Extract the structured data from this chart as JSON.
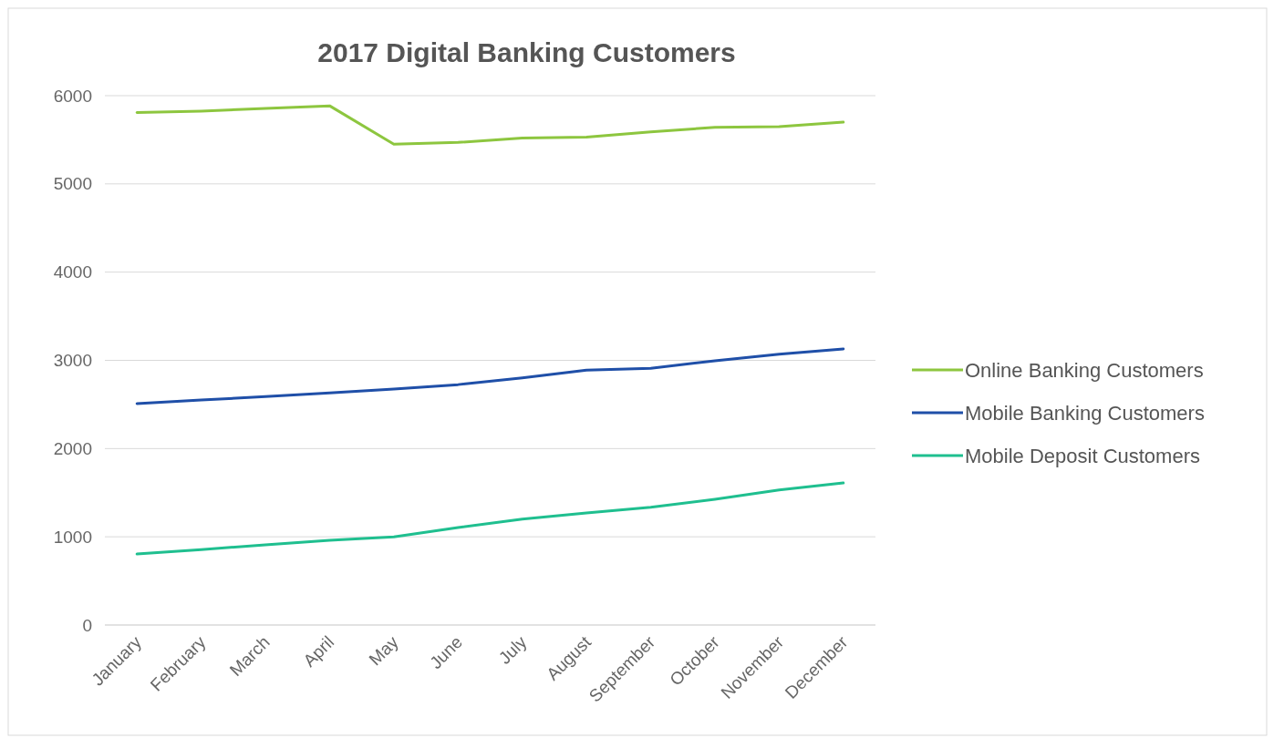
{
  "chart_data": {
    "type": "line",
    "title": "2017 Digital Banking Customers",
    "categories": [
      "January",
      "February",
      "March",
      "April",
      "May",
      "June",
      "July",
      "August",
      "September",
      "October",
      "November",
      "December"
    ],
    "series": [
      {
        "name": "Online Banking Customers",
        "color": "#8dc63f",
        "values": [
          5810,
          5825,
          5855,
          5885,
          5450,
          5470,
          5520,
          5530,
          5590,
          5640,
          5650,
          5700
        ]
      },
      {
        "name": "Mobile Banking Customers",
        "color": "#1f4fa8",
        "values": [
          2510,
          2550,
          2590,
          2630,
          2675,
          2725,
          2800,
          2890,
          2910,
          2995,
          3070,
          3130
        ]
      },
      {
        "name": "Mobile Deposit Customers",
        "color": "#1fbf8f",
        "values": [
          805,
          855,
          910,
          960,
          1000,
          1105,
          1200,
          1270,
          1335,
          1425,
          1530,
          1610
        ]
      }
    ],
    "ylim": [
      0,
      6000
    ],
    "yticks": [
      0,
      1000,
      2000,
      3000,
      4000,
      5000,
      6000
    ],
    "grid": "y",
    "legend": "right",
    "marker": "none",
    "line_style": "solid"
  }
}
